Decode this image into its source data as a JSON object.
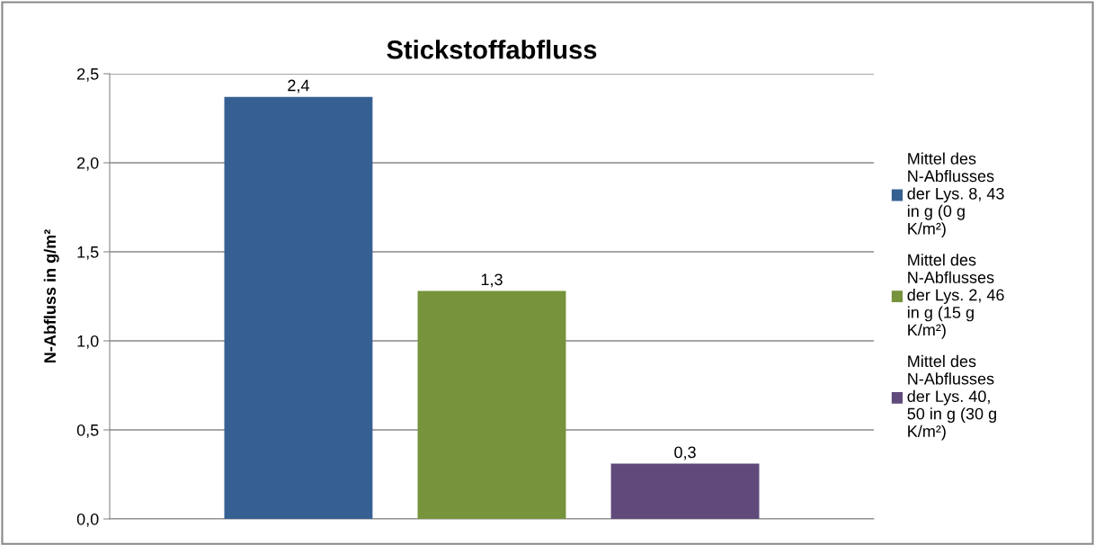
{
  "chart_data": {
    "type": "bar",
    "title": "Stickstoffabfluss",
    "ylabel": "N-Abfluss in g/m²",
    "categories": [
      null
    ],
    "series": [
      {
        "name": "Mittel des N-Abflusses der Lys. 8, 43 in g (0 g K/m²)",
        "color": "#376092",
        "values": [
          2.37
        ],
        "value_labels": [
          "2,4"
        ]
      },
      {
        "name": "Mittel des N-Abflusses der Lys. 2, 46 in g (15 g K/m²)",
        "color": "#77933c",
        "values": [
          1.28
        ],
        "value_labels": [
          "1,3"
        ]
      },
      {
        "name": "Mittel des N-Abflusses der Lys. 40, 50 in g (30 g K/m²)",
        "color": "#604a7b",
        "values": [
          0.31
        ],
        "value_labels": [
          "0,3"
        ]
      }
    ],
    "ylim": [
      0,
      2.5
    ],
    "yticks": [
      {
        "value": 0,
        "label": "0,0"
      },
      {
        "value": 0.5,
        "label": "0,5"
      },
      {
        "value": 1,
        "label": "1,0"
      },
      {
        "value": 1.5,
        "label": "1,5"
      },
      {
        "value": 2,
        "label": "2,0"
      },
      {
        "value": 2.5,
        "label": "2,5"
      }
    ],
    "grid": "y",
    "legend": "right"
  }
}
